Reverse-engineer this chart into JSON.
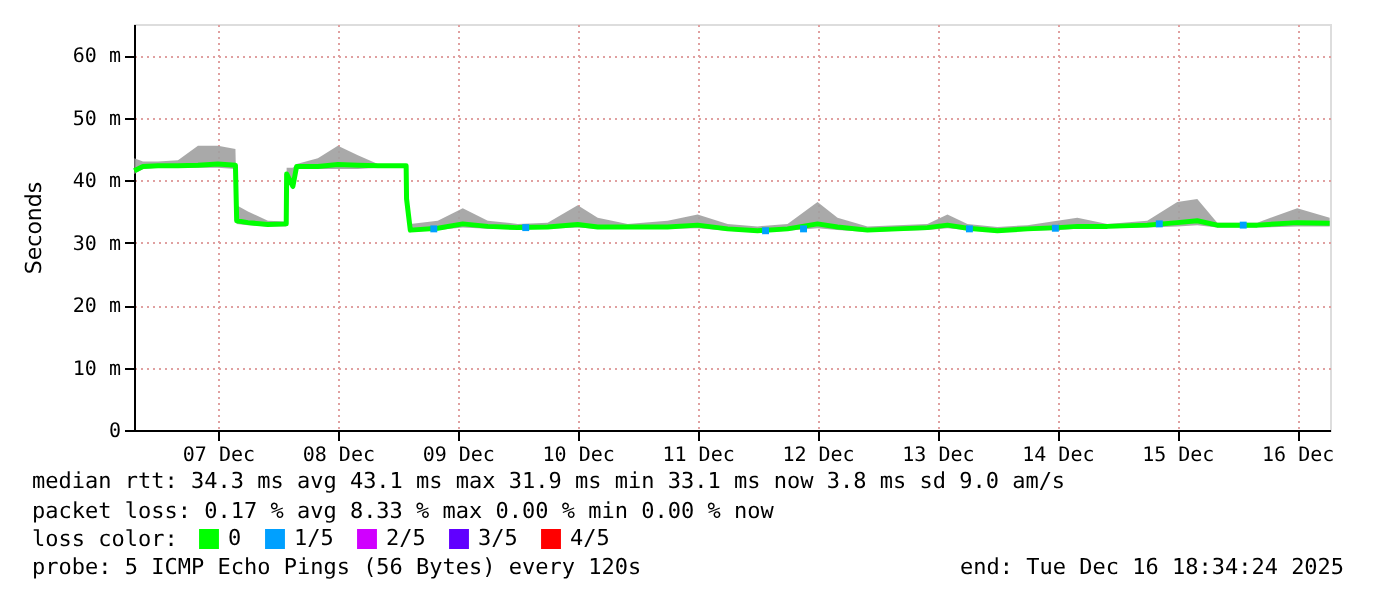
{
  "chart_data": {
    "type": "line",
    "ylabel": "Seconds",
    "xlim": [
      "2025-12-06T19:12",
      "2025-12-16T18:34"
    ],
    "xticks": [
      {
        "value": "2025-12-07T12:00",
        "label": "07 Dec"
      },
      {
        "value": "2025-12-08T12:00",
        "label": "08 Dec"
      },
      {
        "value": "2025-12-09T12:00",
        "label": "09 Dec"
      },
      {
        "value": "2025-12-10T12:00",
        "label": "10 Dec"
      },
      {
        "value": "2025-12-11T12:00",
        "label": "11 Dec"
      },
      {
        "value": "2025-12-12T12:00",
        "label": "12 Dec"
      },
      {
        "value": "2025-12-13T12:00",
        "label": "13 Dec"
      },
      {
        "value": "2025-12-14T12:00",
        "label": "14 Dec"
      },
      {
        "value": "2025-12-15T12:00",
        "label": "15 Dec"
      },
      {
        "value": "2025-12-16T12:00",
        "label": "16 Dec"
      }
    ],
    "ylim": [
      0,
      65
    ],
    "yticks": [
      0,
      {
        "value": 10,
        "label": "10 m"
      },
      {
        "value": 20,
        "label": "20 m"
      },
      {
        "value": 30,
        "label": "30 m"
      },
      {
        "value": 40,
        "label": "40 m"
      },
      {
        "value": 50,
        "label": "50 m"
      },
      {
        "value": 60,
        "label": "60 m"
      }
    ],
    "grid": true,
    "legend": "bottom left",
    "legend_title": "loss color:",
    "series": [
      {
        "name": "0",
        "type": "line",
        "color": "#00ff00",
        "x": [
          "2025-12-06T19:15",
          "2025-12-06T21:00",
          "2025-12-07T00:00",
          "2025-12-07T04:00",
          "2025-12-07T08:00",
          "2025-12-07T12:00",
          "2025-12-07T15:30",
          "2025-12-07T15:45",
          "2025-12-07T18:00",
          "2025-12-07T22:00",
          "2025-12-08T01:40",
          "2025-12-08T01:45",
          "2025-12-08T03:00",
          "2025-12-08T03:45",
          "2025-12-08T08:00",
          "2025-12-08T12:00",
          "2025-12-08T16:00",
          "2025-12-08T20:00",
          "2025-12-09T01:40",
          "2025-12-09T01:45",
          "2025-12-09T02:30",
          "2025-12-09T08:00",
          "2025-12-09T13:00",
          "2025-12-09T18:00",
          "2025-12-10T00:00",
          "2025-12-10T06:00",
          "2025-12-10T12:00",
          "2025-12-10T16:00",
          "2025-12-10T22:00",
          "2025-12-11T06:00",
          "2025-12-11T12:00",
          "2025-12-11T18:00",
          "2025-12-12T00:00",
          "2025-12-12T06:00",
          "2025-12-12T12:00",
          "2025-12-12T16:00",
          "2025-12-12T22:00",
          "2025-12-13T04:00",
          "2025-12-13T10:00",
          "2025-12-13T14:00",
          "2025-12-13T18:00",
          "2025-12-14T00:00",
          "2025-12-14T06:00",
          "2025-12-14T12:00",
          "2025-12-14T16:00",
          "2025-12-14T22:00",
          "2025-12-15T06:00",
          "2025-12-15T12:00",
          "2025-12-15T16:00",
          "2025-12-15T20:00",
          "2025-12-16T04:00",
          "2025-12-16T12:00",
          "2025-12-16T18:30"
        ],
        "values": [
          41.5,
          42.2,
          42.3,
          42.3,
          42.4,
          42.6,
          42.4,
          33.5,
          33.2,
          32.9,
          33.0,
          41.0,
          39.0,
          42.2,
          42.2,
          42.5,
          42.4,
          42.3,
          42.3,
          37.0,
          32.0,
          32.3,
          33.0,
          32.6,
          32.4,
          32.5,
          32.9,
          32.5,
          32.5,
          32.5,
          32.8,
          32.2,
          31.9,
          32.2,
          33.0,
          32.5,
          32.0,
          32.2,
          32.4,
          32.8,
          32.3,
          31.9,
          32.2,
          32.4,
          32.6,
          32.6,
          32.8,
          33.2,
          33.5,
          32.8,
          32.8,
          33.2,
          33.1
        ],
        "lower": [
          41.0,
          41.8,
          42.0,
          42.0,
          42.0,
          42.0,
          41.8,
          33.0,
          32.8,
          32.6,
          32.6,
          40.5,
          38.5,
          41.8,
          41.8,
          41.8,
          41.8,
          42.0,
          42.0,
          36.5,
          31.7,
          32.0,
          32.4,
          32.2,
          32.1,
          32.2,
          32.4,
          32.2,
          32.2,
          32.2,
          32.3,
          31.9,
          31.6,
          31.9,
          32.3,
          32.0,
          31.7,
          31.9,
          32.0,
          32.3,
          32.0,
          31.6,
          31.9,
          32.0,
          32.2,
          32.3,
          32.4,
          32.6,
          32.8,
          32.4,
          32.4,
          32.6,
          32.6
        ],
        "upper": [
          43.5,
          43.0,
          43.0,
          43.2,
          45.5,
          45.5,
          45.0,
          36.0,
          35.0,
          33.5,
          33.4,
          42.0,
          42.0,
          42.6,
          43.5,
          45.5,
          44.0,
          42.6,
          42.6,
          37.5,
          33.0,
          33.5,
          35.5,
          33.5,
          33.0,
          33.2,
          36.0,
          34.0,
          33.0,
          33.5,
          34.5,
          33.0,
          32.6,
          33.0,
          36.5,
          34.0,
          32.6,
          32.8,
          33.0,
          34.5,
          33.0,
          32.5,
          32.8,
          33.5,
          34.0,
          33.0,
          33.5,
          36.5,
          37.0,
          33.2,
          33.2,
          35.5,
          34.0
        ]
      },
      {
        "name": "1/5",
        "type": "scatter",
        "color": "#00a0ff",
        "x": [
          "2025-12-09T07:12",
          "2025-12-10T01:36",
          "2025-12-12T01:36",
          "2025-12-12T09:12",
          "2025-12-13T18:24",
          "2025-12-14T11:36",
          "2025-12-15T08:24",
          "2025-12-16T01:12"
        ],
        "values": [
          32.2,
          32.4,
          31.9,
          32.2,
          32.2,
          32.3,
          33.0,
          32.8
        ]
      },
      {
        "name": "2/5",
        "type": "scatter",
        "color": "#d000ff"
      },
      {
        "name": "3/5",
        "type": "scatter",
        "color": "#6000ff"
      },
      {
        "name": "4/5",
        "type": "scatter",
        "color": "#ff0000"
      }
    ],
    "annotations": [
      "median rtt:  34.3 ms avg  43.1 ms max  31.9 ms min  33.1 ms now  3.8 ms sd  9.0   am/s",
      "packet loss: 0.17 % avg  8.33 % max  0.00 % min  0.00 % now",
      "probe:       5 ICMP Echo Pings (56 Bytes) every 120s",
      "end: Tue Dec 16 18:34:24 2025"
    ]
  }
}
